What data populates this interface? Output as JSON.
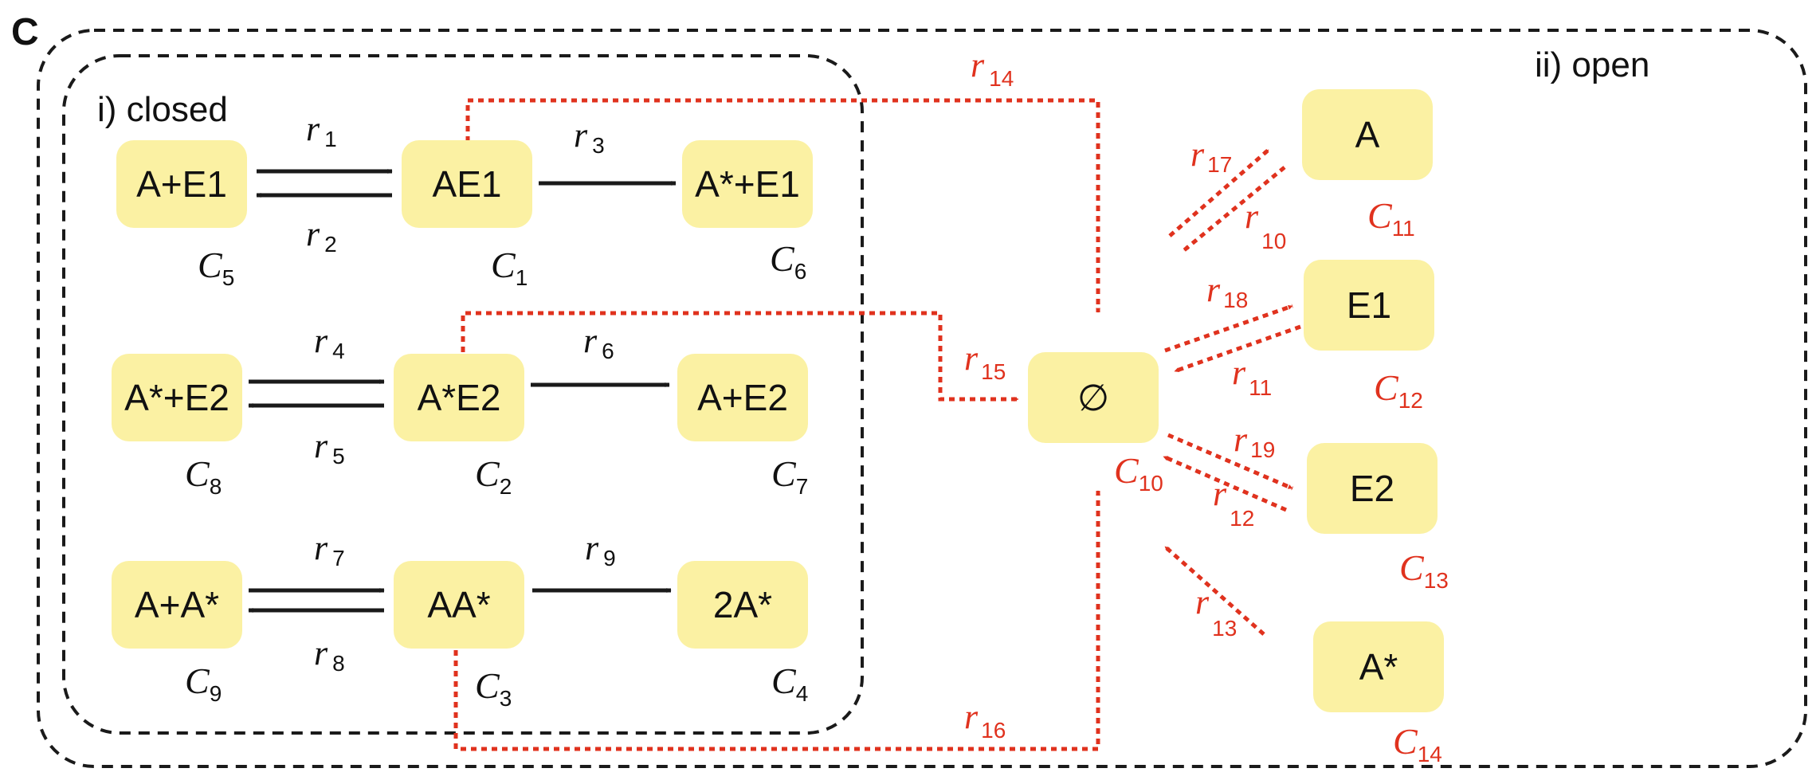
{
  "panel_letter": "C",
  "regions": {
    "closed_label": "i) closed",
    "open_label": "ii) open"
  },
  "colors": {
    "node_fill": "#fbf1a3",
    "closed_arrow": "#1a1a1a",
    "open_arrow": "#e0321e"
  },
  "nodes": [
    {
      "id": "n5",
      "label": "A+E1",
      "cname": "C",
      "csub": "5"
    },
    {
      "id": "n1",
      "label": "AE1",
      "cname": "C",
      "csub": "1"
    },
    {
      "id": "n6",
      "label": "A*+E1",
      "cname": "C",
      "csub": "6"
    },
    {
      "id": "n8",
      "label": "A*+E2",
      "cname": "C",
      "csub": "8"
    },
    {
      "id": "n2",
      "label": "A*E2",
      "cname": "C",
      "csub": "2"
    },
    {
      "id": "n7",
      "label": "A+E2",
      "cname": "C",
      "csub": "7"
    },
    {
      "id": "n9",
      "label": "A+A*",
      "cname": "C",
      "csub": "9"
    },
    {
      "id": "n3",
      "label": "AA*",
      "cname": "C",
      "csub": "3"
    },
    {
      "id": "n4",
      "label": "2A*",
      "cname": "C",
      "csub": "4"
    },
    {
      "id": "n10",
      "label": "∅",
      "cname": "C",
      "csub": "10"
    },
    {
      "id": "n11",
      "label": "A",
      "cname": "C",
      "csub": "11"
    },
    {
      "id": "n12",
      "label": "E1",
      "cname": "C",
      "csub": "12"
    },
    {
      "id": "n13",
      "label": "E2",
      "cname": "C",
      "csub": "13"
    },
    {
      "id": "n14",
      "label": "A*",
      "cname": "C",
      "csub": "14"
    }
  ],
  "reactions": [
    {
      "id": "r1",
      "name": "r",
      "sub": "1"
    },
    {
      "id": "r2",
      "name": "r",
      "sub": "2"
    },
    {
      "id": "r3",
      "name": "r",
      "sub": "3"
    },
    {
      "id": "r4",
      "name": "r",
      "sub": "4"
    },
    {
      "id": "r5",
      "name": "r",
      "sub": "5"
    },
    {
      "id": "r6",
      "name": "r",
      "sub": "6"
    },
    {
      "id": "r7",
      "name": "r",
      "sub": "7"
    },
    {
      "id": "r8",
      "name": "r",
      "sub": "8"
    },
    {
      "id": "r9",
      "name": "r",
      "sub": "9"
    },
    {
      "id": "r10",
      "name": "r",
      "sub": "10"
    },
    {
      "id": "r11",
      "name": "r",
      "sub": "11"
    },
    {
      "id": "r12",
      "name": "r",
      "sub": "12"
    },
    {
      "id": "r13",
      "name": "r",
      "sub": "13"
    },
    {
      "id": "r14",
      "name": "r",
      "sub": "14"
    },
    {
      "id": "r15",
      "name": "r",
      "sub": "15"
    },
    {
      "id": "r16",
      "name": "r",
      "sub": "16"
    },
    {
      "id": "r17",
      "name": "r",
      "sub": "17"
    },
    {
      "id": "r18",
      "name": "r",
      "sub": "18"
    },
    {
      "id": "r19",
      "name": "r",
      "sub": "19"
    }
  ]
}
